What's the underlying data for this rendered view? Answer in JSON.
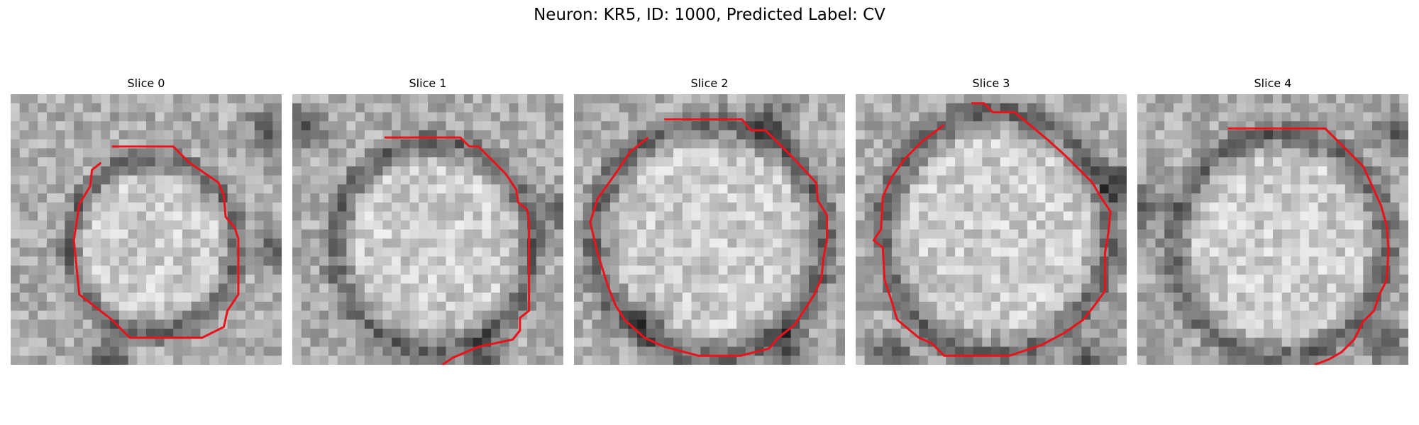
{
  "figure": {
    "title": "Neuron: KR5, ID: 1000, Predicted Label: CV",
    "contour_color": "#e8141c"
  },
  "slices": [
    {
      "title": "Slice 0",
      "seed": 11,
      "contour": "112,58 200,58 240,90 253,138 252,235 226,272 184,270 154,232 160,180 172,128 152,90",
      "ring": [
        149,
        156,
        88,
        100
      ]
    },
    {
      "title": "Slice 1",
      "seed": 23,
      "contour": "130,62 210,62 242,98 252,140 252,244 225,278 174,278 150,246 138,188 150,130 178,92 215,78"
    },
    {
      "title": "Slice 2",
      "seed": 37,
      "contour": "130,36 225,36 263,80 278,126 276,230 245,290 188,290 138,252 132,172 148,114 170,72"
    },
    {
      "title": "Slice 3",
      "seed": 51,
      "contour": "140,18 195,18 240,60 270,100 285,150 275,252 235,290 180,290 116,288 68,250 38,204 38,136 60,88 96,52"
    },
    {
      "title": "Slice 4",
      "seed": 67,
      "contour": "100,38 205,38 250,78 275,116 275,223 244,272 192,292 150,292 102,262 80,218 80,142 100,90"
    }
  ]
}
